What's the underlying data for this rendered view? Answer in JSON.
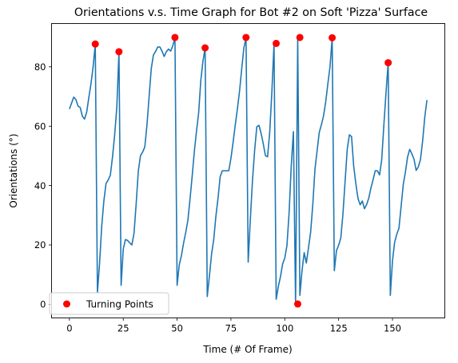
{
  "chart_data": {
    "type": "line",
    "title": "Orientations v.s. Time Graph for Bot #2 on Soft 'Pizza' Surface",
    "xlabel": "Time (# Of Frame)",
    "ylabel": "Orientations (°)",
    "xlim": [
      -8.3,
      174.3
    ],
    "ylim": [
      -4.6,
      94.6
    ],
    "xticks": [
      0,
      25,
      50,
      75,
      100,
      125,
      150
    ],
    "yticks": [
      0,
      20,
      40,
      60,
      80
    ],
    "grid": false,
    "legend": {
      "location": "lower left",
      "entries": [
        "Turning Points"
      ]
    },
    "colors": {
      "line": "#1f77b4",
      "turning_points": "#ff0000"
    },
    "series": [
      {
        "type": "line",
        "x": [
          0,
          1,
          2,
          3,
          4,
          5,
          6,
          7,
          8,
          9,
          10,
          11,
          12,
          13,
          14,
          15,
          16,
          17,
          18,
          19,
          20,
          21,
          22,
          23,
          24,
          25,
          26,
          27,
          28,
          29,
          30,
          31,
          32,
          33,
          34,
          35,
          36,
          37,
          38,
          39,
          40,
          41,
          42,
          43,
          44,
          45,
          46,
          47,
          48,
          49,
          50,
          51,
          52,
          53,
          54,
          55,
          56,
          57,
          58,
          59,
          60,
          61,
          62,
          63,
          64,
          65,
          66,
          67,
          68,
          69,
          70,
          71,
          72,
          73,
          74,
          75,
          76,
          77,
          78,
          79,
          80,
          81,
          82,
          83,
          84,
          85,
          86,
          87,
          88,
          89,
          90,
          91,
          92,
          93,
          94,
          95,
          96,
          97,
          98,
          99,
          100,
          101,
          102,
          103,
          104,
          105,
          106,
          107,
          108,
          109,
          110,
          111,
          112,
          113,
          114,
          115,
          116,
          117,
          118,
          119,
          120,
          121,
          122,
          123,
          124,
          125,
          126,
          127,
          128,
          129,
          130,
          131,
          132,
          133,
          134,
          135,
          136,
          137,
          138,
          139,
          140,
          141,
          142,
          143,
          144,
          145,
          146,
          147,
          148,
          149,
          150,
          151,
          152,
          153,
          154,
          155,
          156,
          157,
          158,
          159,
          160,
          161,
          162,
          163,
          164,
          165,
          166
        ],
        "y": [
          65.8,
          67.8,
          69.8,
          69,
          66.8,
          66.3,
          63.4,
          62.4,
          64.7,
          69.6,
          74.3,
          80,
          87.7,
          4,
          13.9,
          26.4,
          34.9,
          40.7,
          41.9,
          43.5,
          49.6,
          57,
          66.4,
          85.1,
          6.4,
          18.6,
          21.8,
          21.5,
          20.7,
          20,
          24,
          34,
          45,
          50.1,
          51.3,
          53,
          60.4,
          70,
          79.4,
          84,
          85.2,
          86.7,
          86.7,
          85.3,
          83.5,
          85.1,
          86,
          85.3,
          87.1,
          89.9,
          6.4,
          13.3,
          16.4,
          20.6,
          24.2,
          28.3,
          35.5,
          43.2,
          51.5,
          58.3,
          64.5,
          75.4,
          81.9,
          86.4,
          2.6,
          9.5,
          16.9,
          21.8,
          29.6,
          35.8,
          43,
          45,
          45,
          45,
          45,
          49.2,
          54.6,
          60.4,
          65.9,
          71.9,
          79.4,
          86.4,
          89.9,
          14.2,
          28.6,
          41.8,
          51.9,
          59.8,
          60.3,
          57.6,
          54.1,
          50.1,
          49.7,
          58,
          71.6,
          87.9,
          1.7,
          6,
          9.3,
          13.6,
          15.6,
          19.8,
          30.8,
          46.7,
          58.2,
          0.1,
          89.9,
          3,
          11.3,
          17.4,
          13.9,
          19,
          24.3,
          33.6,
          45.5,
          51.7,
          57.9,
          60.5,
          63.5,
          68.2,
          74.3,
          80.1,
          89.8,
          11.3,
          18.1,
          19.9,
          22.3,
          30.4,
          41.4,
          52.3,
          57.1,
          56.5,
          46.5,
          40.6,
          35.6,
          33.5,
          34.8,
          32.2,
          33.6,
          35.8,
          39.2,
          42,
          45,
          45,
          43.6,
          48.7,
          60.4,
          71.3,
          81.4,
          3,
          14.6,
          20.9,
          23.6,
          25.6,
          32.9,
          40.3,
          44.5,
          49.6,
          52.2,
          50.7,
          48.9,
          45.1,
          46.3,
          48.8,
          55,
          63.1,
          68.8
        ]
      },
      {
        "name": "Turning Points",
        "type": "scatter",
        "x": [
          12,
          23,
          49,
          63,
          82,
          96,
          106,
          107,
          122,
          148
        ],
        "y": [
          87.7,
          85.1,
          89.9,
          86.4,
          89.9,
          87.9,
          0.1,
          89.9,
          89.8,
          81.4
        ]
      }
    ]
  }
}
